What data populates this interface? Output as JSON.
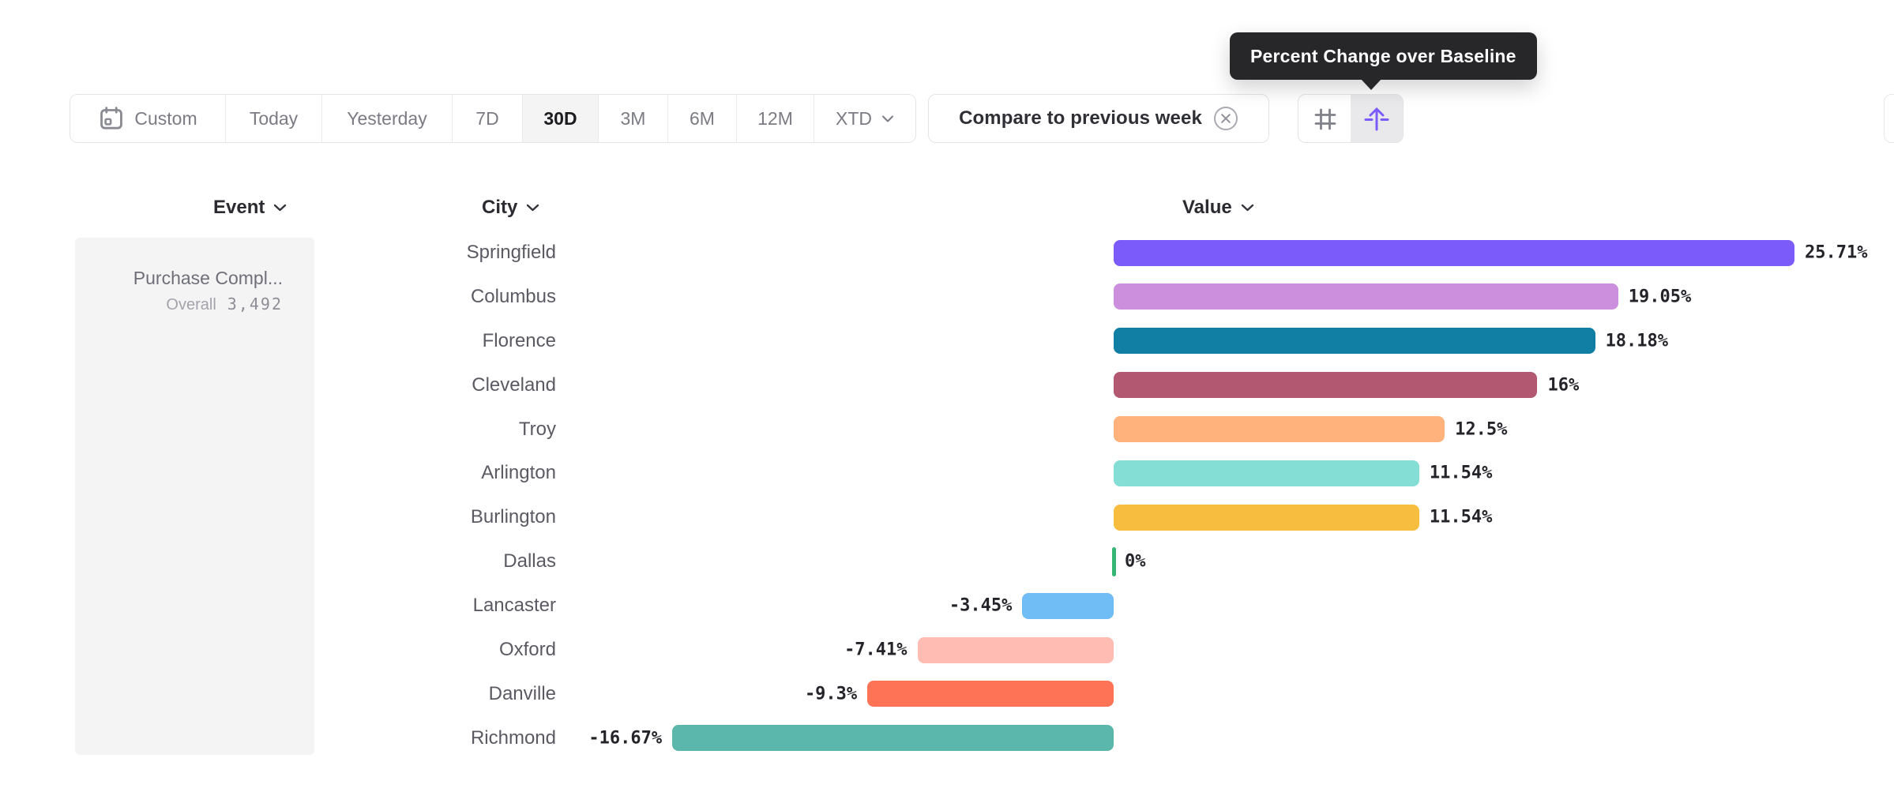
{
  "tooltip": {
    "text": "Percent Change over Baseline"
  },
  "toolbar": {
    "ranges": [
      {
        "label": "Custom"
      },
      {
        "label": "Today"
      },
      {
        "label": "Yesterday"
      },
      {
        "label": "7D"
      },
      {
        "label": "30D"
      },
      {
        "label": "3M"
      },
      {
        "label": "6M"
      },
      {
        "label": "12M"
      },
      {
        "label": "XTD"
      }
    ],
    "selected_range": "30D",
    "compare_label": "Compare to previous week",
    "accent_color": "#7B5BFA"
  },
  "columns": {
    "event": "Event",
    "city": "City",
    "value": "Value"
  },
  "event_panel": {
    "name": "Purchase Compl...",
    "overall_label": "Overall",
    "overall_value": "3,492"
  },
  "chart_data": {
    "type": "bar",
    "orientation": "horizontal",
    "title": "Percent Change over Baseline",
    "unit": "%",
    "baseline_value": 0,
    "categories": [
      "Springfield",
      "Columbus",
      "Florence",
      "Cleveland",
      "Troy",
      "Arlington",
      "Burlington",
      "Dallas",
      "Lancaster",
      "Oxford",
      "Danville",
      "Richmond"
    ],
    "values": [
      25.71,
      19.05,
      18.18,
      16,
      12.5,
      11.54,
      11.54,
      0,
      -3.45,
      -7.41,
      -9.3,
      -16.67
    ],
    "labels": [
      "25.71%",
      "19.05%",
      "18.18%",
      "16%",
      "12.5%",
      "11.54%",
      "11.54%",
      "0%",
      "-3.45%",
      "-7.41%",
      "-9.3%",
      "-16.67%"
    ],
    "colors": [
      "#7B5BFA",
      "#CC8FDE",
      "#117EA3",
      "#B25971",
      "#FFB27B",
      "#84DED6",
      "#F7BD3E",
      "#35B675",
      "#70BCF4",
      "#FEBCB3",
      "#FE7356",
      "#5BB7AC"
    ],
    "xlim": [
      -20,
      28
    ],
    "grid": false,
    "legend": false
  }
}
